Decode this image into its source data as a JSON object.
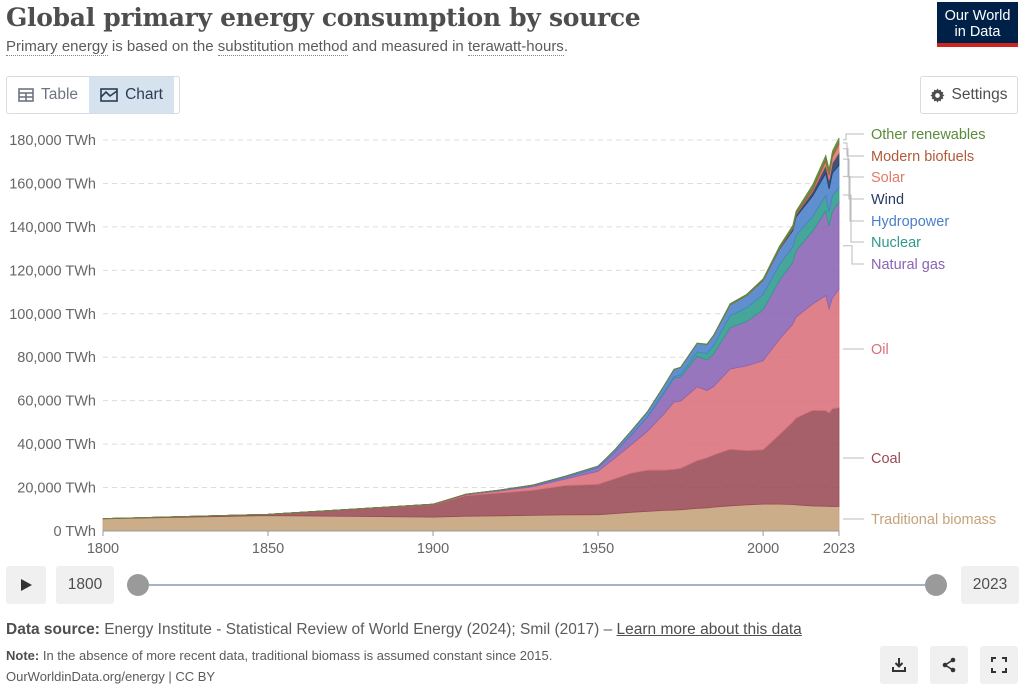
{
  "header": {
    "title": "Global primary energy consumption by source",
    "subtitle_parts": [
      "Primary energy",
      " is based on the ",
      "substitution method",
      " and measured in ",
      "terawatt-hours",
      "."
    ],
    "logo_line1": "Our World",
    "logo_line2": "in Data"
  },
  "toolbar": {
    "table_label": "Table",
    "chart_label": "Chart",
    "settings_label": "Settings"
  },
  "timeline": {
    "start_year": "1800",
    "end_year": "2023"
  },
  "footer": {
    "source_label": "Data source:",
    "source_text": "Energy Institute - Statistical Review of World Energy (2024); Smil (2017) –",
    "learn_more": "Learn more about this data",
    "note_label": "Note:",
    "note_text": "In the absence of more recent data, traditional biomass is assumed constant since 2015.",
    "url": "OurWorldinData.org/energy | CC BY"
  },
  "colors": {
    "traditional_biomass": "#c4a27a",
    "coal": "#9a4a55",
    "oil": "#d9707b",
    "natural_gas": "#8a63b4",
    "nuclear": "#2e9a8c",
    "hydropower": "#4a7fca",
    "wind": "#253a63",
    "solar": "#e07a6b",
    "modern_biofuels": "#b15a3a",
    "other_renewables": "#5a8a3a"
  },
  "chart_data": {
    "type": "area",
    "stacked": true,
    "title": "Global primary energy consumption by source",
    "ylabel": "TWh",
    "y_unit_suffix": " TWh",
    "ylim": [
      0,
      180000
    ],
    "y_ticks": [
      0,
      20000,
      40000,
      60000,
      80000,
      100000,
      120000,
      140000,
      160000,
      180000
    ],
    "y_tick_labels": [
      "0 TWh",
      "20,000 TWh",
      "40,000 TWh",
      "60,000 TWh",
      "80,000 TWh",
      "100,000 TWh",
      "120,000 TWh",
      "140,000 TWh",
      "160,000 TWh",
      "180,000 TWh"
    ],
    "xlim": [
      1800,
      2023
    ],
    "x_ticks": [
      1800,
      1850,
      1900,
      1950,
      2000,
      2023
    ],
    "x_tick_labels": [
      "1800",
      "1850",
      "1900",
      "1950",
      "2000",
      "2023"
    ],
    "x": [
      1800,
      1850,
      1900,
      1910,
      1920,
      1930,
      1940,
      1950,
      1955,
      1960,
      1965,
      1970,
      1973,
      1975,
      1980,
      1983,
      1985,
      1990,
      1995,
      2000,
      2005,
      2009,
      2010,
      2015,
      2019,
      2020,
      2021,
      2023
    ],
    "series": [
      {
        "name": "Traditional biomass",
        "values": [
          5600,
          7100,
          6400,
          6800,
          7000,
          7200,
          7400,
          7500,
          8000,
          8600,
          9000,
          9500,
          9600,
          9800,
          10400,
          10700,
          11000,
          11600,
          12000,
          12400,
          12400,
          12200,
          12000,
          11500,
          11400,
          11300,
          11300,
          11300
        ]
      },
      {
        "name": "Coal",
        "values": [
          100,
          600,
          5700,
          9500,
          10500,
          11500,
          13500,
          14000,
          16000,
          18000,
          19000,
          18500,
          18800,
          19000,
          22000,
          23000,
          24000,
          26000,
          25000,
          25000,
          32000,
          38000,
          40000,
          44000,
          44000,
          43000,
          45000,
          45500
        ]
      },
      {
        "name": "Oil",
        "values": [
          0,
          0,
          200,
          400,
          900,
          1600,
          3000,
          6000,
          9500,
          13000,
          18000,
          26000,
          31000,
          31000,
          34000,
          31000,
          31500,
          37000,
          39000,
          41000,
          44000,
          45000,
          46500,
          49000,
          53000,
          48000,
          51000,
          54500
        ]
      },
      {
        "name": "Natural gas",
        "values": [
          0,
          0,
          60,
          150,
          250,
          500,
          700,
          1600,
          2700,
          4500,
          6500,
          9500,
          11000,
          11000,
          14000,
          14000,
          15000,
          19000,
          20500,
          23500,
          27000,
          28500,
          30500,
          33500,
          39000,
          38000,
          40000,
          40000
        ]
      },
      {
        "name": "Nuclear",
        "values": [
          0,
          0,
          0,
          0,
          0,
          0,
          0,
          0,
          0,
          10,
          100,
          400,
          700,
          1000,
          2000,
          3000,
          4000,
          5500,
          6200,
          7000,
          7400,
          7000,
          7100,
          6800,
          7100,
          6700,
          7000,
          6800
        ]
      },
      {
        "name": "Hydropower",
        "values": [
          0,
          0,
          0,
          80,
          200,
          300,
          600,
          800,
          1100,
          1900,
          2400,
          3000,
          3300,
          3500,
          4000,
          4200,
          4400,
          5000,
          5600,
          6300,
          7000,
          7700,
          8500,
          9400,
          10200,
          10500,
          10500,
          10300
        ]
      },
      {
        "name": "Wind",
        "values": [
          0,
          0,
          0,
          0,
          0,
          0,
          0,
          0,
          0,
          0,
          0,
          0,
          0,
          0,
          0,
          0,
          0,
          10,
          20,
          80,
          280,
          700,
          900,
          2100,
          3600,
          4000,
          4600,
          5600
        ]
      },
      {
        "name": "Solar",
        "values": [
          0,
          0,
          0,
          0,
          0,
          0,
          0,
          0,
          0,
          0,
          0,
          0,
          0,
          0,
          0,
          0,
          0,
          0,
          0,
          0,
          10,
          50,
          80,
          650,
          1900,
          2200,
          2700,
          4000
        ]
      },
      {
        "name": "Modern biofuels",
        "values": [
          0,
          0,
          0,
          0,
          0,
          0,
          0,
          0,
          0,
          0,
          0,
          0,
          0,
          0,
          0,
          0,
          100,
          200,
          200,
          250,
          400,
          700,
          800,
          1000,
          1100,
          1100,
          1100,
          1200
        ]
      },
      {
        "name": "Other renewables",
        "values": [
          0,
          0,
          0,
          0,
          0,
          0,
          0,
          0,
          10,
          20,
          30,
          50,
          60,
          80,
          150,
          200,
          250,
          350,
          450,
          550,
          700,
          900,
          950,
          1400,
          1600,
          1650,
          1700,
          1750
        ]
      }
    ]
  }
}
